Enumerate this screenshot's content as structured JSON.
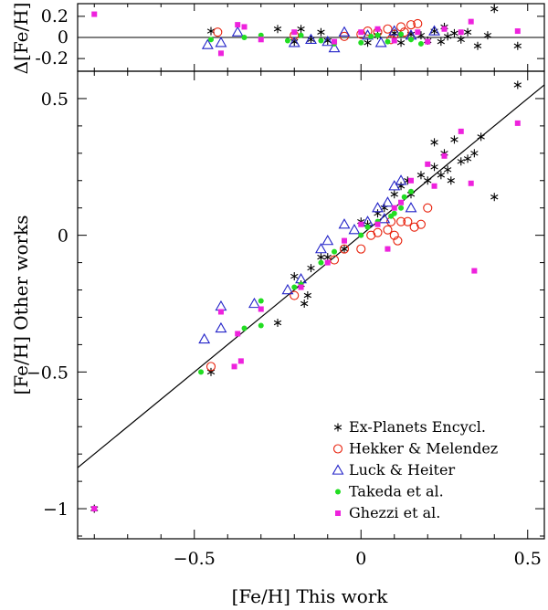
{
  "chart_data": [
    {
      "id": "residual",
      "type": "scatter",
      "ylabel": "Δ[Fe/H]",
      "xlim": [
        -0.85,
        0.55
      ],
      "ylim": [
        -0.32,
        0.32
      ],
      "yticks": [
        {
          "v": 0.2,
          "label": "0.2"
        },
        {
          "v": 0,
          "label": "0"
        },
        {
          "v": -0.2,
          "label": "-0.2"
        }
      ],
      "reference_line": {
        "type": "horizontal",
        "y": 0
      },
      "series": [
        {
          "name": "Ex-Planets Encycl.",
          "marker": "asterisk",
          "color": "#000000",
          "points": [
            [
              -0.45,
              0.06
            ],
            [
              -0.2,
              -0.04
            ],
            [
              -0.18,
              0.08
            ],
            [
              -0.15,
              -0.02
            ],
            [
              -0.12,
              0.05
            ],
            [
              -0.1,
              -0.03
            ],
            [
              0.02,
              -0.05
            ],
            [
              0.05,
              0.02
            ],
            [
              0.1,
              0.04
            ],
            [
              0.12,
              -0.05
            ],
            [
              0.15,
              0.03
            ],
            [
              0.18,
              0.02
            ],
            [
              0.2,
              -0.03
            ],
            [
              0.22,
              0.06
            ],
            [
              0.24,
              -0.04
            ],
            [
              0.26,
              0.01
            ],
            [
              0.28,
              0.04
            ],
            [
              0.3,
              -0.02
            ],
            [
              0.32,
              0.05
            ],
            [
              0.35,
              -0.08
            ],
            [
              0.4,
              0.27
            ],
            [
              0.47,
              -0.08
            ],
            [
              0.38,
              0.02
            ],
            [
              0.25,
              0.1
            ],
            [
              -0.25,
              0.08
            ]
          ]
        },
        {
          "name": "Hekker & Melendez",
          "marker": "circle",
          "color": "#e8220d",
          "points": [
            [
              -0.43,
              0.05
            ],
            [
              -0.2,
              0.02
            ],
            [
              -0.05,
              0.01
            ],
            [
              0.0,
              0.03
            ],
            [
              0.02,
              0.06
            ],
            [
              0.05,
              0.05
            ],
            [
              0.08,
              0.08
            ],
            [
              0.1,
              0.03
            ],
            [
              0.12,
              0.1
            ],
            [
              0.15,
              0.12
            ],
            [
              0.17,
              0.13
            ],
            [
              0.13,
              0.05
            ],
            [
              0.09,
              -0.02
            ]
          ]
        },
        {
          "name": "Luck & Heiter",
          "marker": "triangle",
          "color": "#2222c8",
          "points": [
            [
              -0.46,
              -0.07
            ],
            [
              -0.42,
              -0.05
            ],
            [
              -0.37,
              0.05
            ],
            [
              -0.2,
              -0.05
            ],
            [
              -0.15,
              -0.02
            ],
            [
              -0.1,
              -0.04
            ],
            [
              -0.05,
              0.05
            ],
            [
              0.02,
              0.02
            ],
            [
              0.06,
              -0.05
            ],
            [
              0.1,
              0.06
            ],
            [
              0.15,
              0.02
            ],
            [
              0.22,
              0.06
            ],
            [
              -0.08,
              -0.1
            ]
          ]
        },
        {
          "name": "Takeda et al.",
          "marker": "dot",
          "color": "#22dd22",
          "points": [
            [
              -0.45,
              -0.02
            ],
            [
              -0.35,
              0.0
            ],
            [
              -0.3,
              0.02
            ],
            [
              -0.18,
              0.02
            ],
            [
              -0.12,
              -0.03
            ],
            [
              -0.08,
              -0.06
            ],
            [
              0.0,
              -0.05
            ],
            [
              0.05,
              0.02
            ],
            [
              0.08,
              -0.04
            ],
            [
              0.12,
              0.03
            ],
            [
              0.15,
              -0.02
            ],
            [
              0.18,
              -0.06
            ],
            [
              -0.22,
              -0.03
            ],
            [
              0.03,
              0.01
            ]
          ]
        },
        {
          "name": "Ghezzi et al.",
          "marker": "square",
          "color": "#ee22dd",
          "points": [
            [
              -0.8,
              0.22
            ],
            [
              -0.42,
              -0.15
            ],
            [
              -0.37,
              0.12
            ],
            [
              -0.35,
              0.1
            ],
            [
              -0.3,
              -0.02
            ],
            [
              -0.2,
              0.05
            ],
            [
              -0.08,
              -0.04
            ],
            [
              0.0,
              0.05
            ],
            [
              0.05,
              0.08
            ],
            [
              0.1,
              -0.03
            ],
            [
              0.17,
              0.05
            ],
            [
              0.2,
              -0.04
            ],
            [
              0.25,
              0.08
            ],
            [
              0.3,
              0.05
            ],
            [
              0.33,
              0.15
            ],
            [
              0.47,
              0.06
            ]
          ]
        }
      ]
    },
    {
      "id": "main",
      "type": "scatter",
      "xlabel": "[Fe/H] This work",
      "ylabel": "[Fe/H] Other works",
      "xlim": [
        -0.85,
        0.55
      ],
      "ylim": [
        -1.11,
        0.6
      ],
      "xticks": [
        {
          "v": -0.5,
          "label": "−0.5"
        },
        {
          "v": 0,
          "label": "0"
        },
        {
          "v": 0.5,
          "label": "0.5"
        }
      ],
      "yticks": [
        {
          "v": 0.5,
          "label": "0.5"
        },
        {
          "v": 0,
          "label": "0"
        },
        {
          "v": -0.5,
          "label": "−0.5"
        },
        {
          "v": -1,
          "label": "−1"
        }
      ],
      "reference_line": {
        "type": "one_to_one",
        "from": [
          -0.85,
          -0.85
        ],
        "to": [
          0.55,
          0.55
        ]
      },
      "legend_position": "bottom-right",
      "series": [
        {
          "name": "Ex-Planets Encycl.",
          "marker": "asterisk",
          "color": "#000000",
          "points": [
            [
              -0.8,
              -1.0
            ],
            [
              -0.45,
              -0.5
            ],
            [
              -0.25,
              -0.32
            ],
            [
              -0.2,
              -0.15
            ],
            [
              -0.18,
              -0.18
            ],
            [
              -0.17,
              -0.25
            ],
            [
              -0.16,
              -0.22
            ],
            [
              -0.15,
              -0.12
            ],
            [
              -0.12,
              -0.08
            ],
            [
              -0.1,
              -0.08
            ],
            [
              -0.05,
              -0.05
            ],
            [
              0.0,
              0.05
            ],
            [
              0.02,
              0.04
            ],
            [
              0.05,
              0.08
            ],
            [
              0.07,
              0.1
            ],
            [
              0.1,
              0.15
            ],
            [
              0.12,
              0.18
            ],
            [
              0.14,
              0.2
            ],
            [
              0.15,
              0.15
            ],
            [
              0.18,
              0.22
            ],
            [
              0.2,
              0.2
            ],
            [
              0.22,
              0.25
            ],
            [
              0.24,
              0.22
            ],
            [
              0.25,
              0.3
            ],
            [
              0.26,
              0.24
            ],
            [
              0.28,
              0.35
            ],
            [
              0.3,
              0.27
            ],
            [
              0.32,
              0.28
            ],
            [
              0.34,
              0.3
            ],
            [
              0.36,
              0.36
            ],
            [
              0.4,
              0.14
            ],
            [
              0.47,
              0.55
            ],
            [
              0.22,
              0.34
            ],
            [
              0.27,
              0.2
            ]
          ]
        },
        {
          "name": "Hekker & Melendez",
          "marker": "circle",
          "color": "#e8220d",
          "points": [
            [
              -0.45,
              -0.48
            ],
            [
              -0.2,
              -0.22
            ],
            [
              -0.08,
              -0.09
            ],
            [
              -0.05,
              -0.05
            ],
            [
              0.0,
              -0.05
            ],
            [
              0.03,
              0.0
            ],
            [
              0.05,
              0.01
            ],
            [
              0.08,
              0.02
            ],
            [
              0.1,
              0.0
            ],
            [
              0.12,
              0.05
            ],
            [
              0.14,
              0.05
            ],
            [
              0.16,
              0.03
            ],
            [
              0.18,
              0.04
            ],
            [
              0.11,
              -0.02
            ],
            [
              0.09,
              0.05
            ],
            [
              0.2,
              0.1
            ]
          ]
        },
        {
          "name": "Luck & Heiter",
          "marker": "triangle",
          "color": "#2222c8",
          "points": [
            [
              -0.47,
              -0.38
            ],
            [
              -0.42,
              -0.34
            ],
            [
              -0.42,
              -0.26
            ],
            [
              -0.32,
              -0.25
            ],
            [
              -0.22,
              -0.2
            ],
            [
              -0.18,
              -0.16
            ],
            [
              -0.12,
              -0.05
            ],
            [
              -0.1,
              -0.02
            ],
            [
              -0.05,
              0.04
            ],
            [
              -0.02,
              0.02
            ],
            [
              0.02,
              0.05
            ],
            [
              0.05,
              0.1
            ],
            [
              0.08,
              0.12
            ],
            [
              0.1,
              0.18
            ],
            [
              0.12,
              0.2
            ],
            [
              0.15,
              0.1
            ],
            [
              0.07,
              0.06
            ]
          ]
        },
        {
          "name": "Takeda et al.",
          "marker": "dot",
          "color": "#22dd22",
          "points": [
            [
              -0.48,
              -0.5
            ],
            [
              -0.35,
              -0.34
            ],
            [
              -0.3,
              -0.33
            ],
            [
              -0.3,
              -0.24
            ],
            [
              -0.2,
              -0.19
            ],
            [
              -0.18,
              -0.18
            ],
            [
              -0.12,
              -0.1
            ],
            [
              -0.08,
              -0.06
            ],
            [
              -0.05,
              -0.02
            ],
            [
              0.0,
              0.0
            ],
            [
              0.02,
              0.03
            ],
            [
              0.05,
              0.05
            ],
            [
              0.08,
              -0.05
            ],
            [
              0.1,
              0.08
            ],
            [
              0.12,
              0.1
            ],
            [
              0.13,
              0.14
            ],
            [
              0.15,
              0.16
            ],
            [
              0.09,
              0.07
            ]
          ]
        },
        {
          "name": "Ghezzi et al.",
          "marker": "square",
          "color": "#ee22dd",
          "points": [
            [
              -0.8,
              -1.0
            ],
            [
              -0.42,
              -0.28
            ],
            [
              -0.38,
              -0.48
            ],
            [
              -0.37,
              -0.36
            ],
            [
              -0.36,
              -0.46
            ],
            [
              -0.3,
              -0.27
            ],
            [
              -0.18,
              -0.19
            ],
            [
              -0.1,
              -0.1
            ],
            [
              -0.05,
              -0.02
            ],
            [
              0.0,
              0.04
            ],
            [
              0.05,
              0.04
            ],
            [
              0.08,
              -0.05
            ],
            [
              0.1,
              0.1
            ],
            [
              0.15,
              0.2
            ],
            [
              0.2,
              0.26
            ],
            [
              0.25,
              0.29
            ],
            [
              0.3,
              0.38
            ],
            [
              0.33,
              0.19
            ],
            [
              0.34,
              -0.13
            ],
            [
              0.47,
              0.41
            ],
            [
              0.22,
              0.18
            ],
            [
              0.12,
              0.12
            ]
          ]
        }
      ]
    }
  ]
}
